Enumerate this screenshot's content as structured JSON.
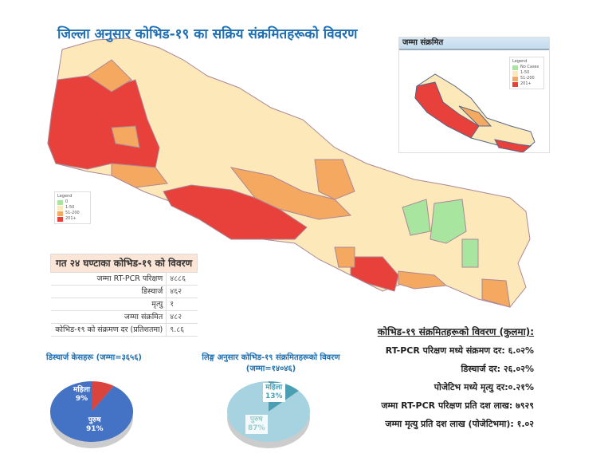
{
  "title": "जिल्ला अनुसार कोभिड-१९ का सक्रिय संक्रमितहरूको विवरण",
  "colors": {
    "no_cases": "#a8e6a0",
    "low": "#fce8b8",
    "mid": "#f4a860",
    "high": "#e8403a",
    "title": "#1f6fb2"
  },
  "legend": {
    "title": "Legend",
    "items": [
      {
        "label": "0",
        "color": "#a8e6a0"
      },
      {
        "label": "1-50",
        "color": "#fce8b8"
      },
      {
        "label": "51-200",
        "color": "#f4a860"
      },
      {
        "label": "201+",
        "color": "#e8403a"
      }
    ]
  },
  "inset": {
    "title": "जम्मा संक्रमित",
    "legend_title": "Legend",
    "items": [
      {
        "label": "No Cases",
        "color": "#a8e6a0"
      },
      {
        "label": "1-50",
        "color": "#fce8b8"
      },
      {
        "label": "51-200",
        "color": "#f4a860"
      },
      {
        "label": "201+",
        "color": "#e8403a"
      }
    ]
  },
  "last24": {
    "title": "गत २४ घण्टाका कोभिड-१९ को विवरण",
    "rows": [
      {
        "label": "जम्मा RT-PCR परिक्षण",
        "value": "४८८६"
      },
      {
        "label": "डिस्चार्ज",
        "value": "४६२"
      },
      {
        "label": "मृत्यु",
        "value": "१"
      },
      {
        "label": "जम्मा संक्रमित",
        "value": "४८२"
      },
      {
        "label": "कोभिड-१९ को संक्रमण दर (प्रतिशतमा)",
        "value": "९.८६"
      }
    ]
  },
  "cumulative": {
    "title": "कोभिड-१९ संक्रमितहरूको विवरण (कुलमा):",
    "lines": [
      "RT-PCR परिक्षण मध्ये संक्रमण दर: ६.०२%",
      "डिस्चार्ज दर: २६.०२%",
      "पोजेटिभ मध्ये मृत्यु दर:०.२१%",
      "जम्मा RT-PCR परिक्षण प्रति दश लाख: ७९२९",
      "जम्मा मृत्यु प्रति दश लाख (पोजेटिभमा): १.०२"
    ]
  },
  "chart_data": [
    {
      "type": "pie",
      "title": "डिस्चार्ज केसहरू (जम्मा=३६५६)",
      "categories": [
        "महिला",
        "पुरुष"
      ],
      "values": [
        9,
        91
      ],
      "labels": [
        "9%",
        "91%"
      ],
      "colors": [
        "#d9453c",
        "#4472c4"
      ]
    },
    {
      "type": "pie",
      "title": "लिङ्ग अनुसार कोभिड-१९ संक्रमितहरूको विवरण",
      "subtitle": "(जम्मा=१४०४६)",
      "categories": [
        "महिला",
        "पुरुष"
      ],
      "values": [
        13,
        87
      ],
      "labels": [
        "13%",
        "87%"
      ],
      "colors": [
        "#4a9fb5",
        "#a6d3df"
      ]
    }
  ]
}
